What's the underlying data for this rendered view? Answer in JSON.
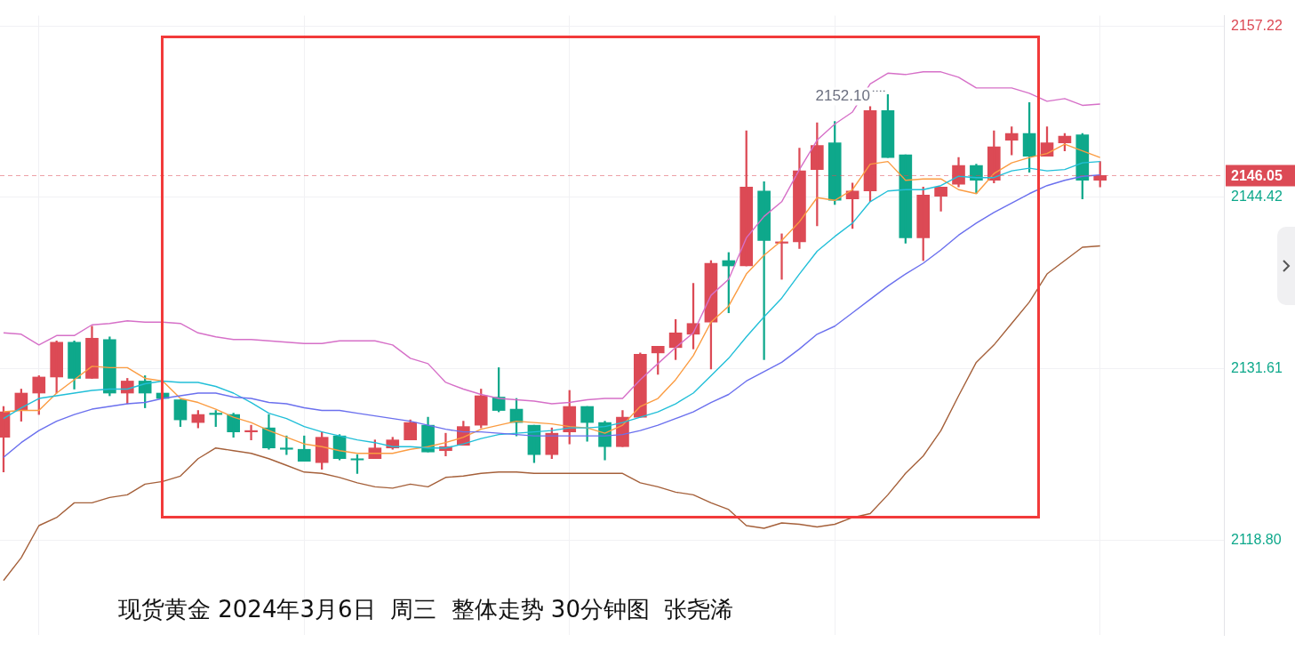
{
  "chart_data": {
    "type": "candlestick",
    "title": "现货黄金 2024年3月6日  周三  整体走势 30分钟图  张尧浠",
    "categories": [
      null,
      null,
      null,
      null,
      null,
      null,
      null,
      null,
      null,
      null,
      null,
      null,
      null,
      null,
      null,
      null,
      null,
      null,
      null,
      null,
      null,
      null,
      null,
      null,
      null,
      null,
      null,
      null,
      null,
      null,
      null,
      null,
      null,
      null,
      null,
      null,
      null,
      null,
      null,
      null,
      null,
      null,
      null,
      null,
      null,
      null,
      null,
      null,
      null,
      null,
      null,
      null,
      null,
      null,
      null,
      null,
      null,
      null,
      null,
      null,
      null,
      null,
      null
    ],
    "ohlc": [
      [
        2126.5,
        2128.8,
        2123.9,
        2128.4
      ],
      [
        2128.5,
        2130.1,
        2127.7,
        2129.8
      ],
      [
        2129.8,
        2131.1,
        2128.2,
        2131.0
      ],
      [
        2131.0,
        2133.7,
        2129.8,
        2133.6
      ],
      [
        2133.6,
        2133.7,
        2130.1,
        2130.9
      ],
      [
        2130.9,
        2134.8,
        2130.9,
        2133.9
      ],
      [
        2133.8,
        2134.0,
        2129.6,
        2129.8
      ],
      [
        2129.8,
        2130.9,
        2129.0,
        2130.7
      ],
      [
        2130.7,
        2131.1,
        2128.7,
        2129.8
      ],
      [
        2129.8,
        2129.8,
        2129.4,
        2129.4
      ],
      [
        2129.3,
        2129.3,
        2127.3,
        2127.8
      ],
      [
        2127.6,
        2128.5,
        2127.2,
        2128.2
      ],
      [
        2128.3,
        2128.5,
        2127.3,
        2128.2
      ],
      [
        2128.2,
        2128.3,
        2126.5,
        2126.9
      ],
      [
        2126.9,
        2127.4,
        2126.3,
        2127.0
      ],
      [
        2127.2,
        2128.2,
        2125.6,
        2125.7
      ],
      [
        2125.7,
        2126.6,
        2125.2,
        2125.6
      ],
      [
        2125.6,
        2126.6,
        2124.7,
        2124.7
      ],
      [
        2124.6,
        2126.9,
        2124.1,
        2126.5
      ],
      [
        2126.6,
        2126.7,
        2124.8,
        2124.9
      ],
      [
        2124.9,
        2125.2,
        2123.8,
        2124.8
      ],
      [
        2124.9,
        2126.3,
        2124.9,
        2125.7
      ],
      [
        2125.7,
        2126.5,
        2125.6,
        2126.3
      ],
      [
        2126.3,
        2127.8,
        2126.3,
        2127.6
      ],
      [
        2127.4,
        2128.0,
        2125.4,
        2125.4
      ],
      [
        2125.5,
        2126.8,
        2125.1,
        2125.8
      ],
      [
        2125.9,
        2127.7,
        2125.9,
        2127.3
      ],
      [
        2127.4,
        2130.1,
        2127.2,
        2129.6
      ],
      [
        2129.5,
        2131.7,
        2128.4,
        2128.5
      ],
      [
        2128.6,
        2129.4,
        2126.6,
        2127.6
      ],
      [
        2127.4,
        2127.4,
        2124.6,
        2125.2
      ],
      [
        2125.2,
        2127.2,
        2124.9,
        2126.8
      ],
      [
        2126.9,
        2130.0,
        2126.0,
        2128.8
      ],
      [
        2128.8,
        2128.8,
        2126.2,
        2127.6
      ],
      [
        2127.6,
        2127.7,
        2124.8,
        2125.8
      ],
      [
        2125.8,
        2128.5,
        2125.8,
        2128.0
      ],
      [
        2128.0,
        2132.8,
        2128.0,
        2132.7
      ],
      [
        2132.8,
        2133.3,
        2131.2,
        2133.3
      ],
      [
        2133.2,
        2135.3,
        2132.3,
        2134.3
      ],
      [
        2134.2,
        2138.0,
        2133.1,
        2135.0
      ],
      [
        2135.1,
        2139.7,
        2131.6,
        2139.5
      ],
      [
        2139.7,
        2140.3,
        2135.8,
        2139.3
      ],
      [
        2139.3,
        2149.4,
        2139.3,
        2145.2
      ],
      [
        2144.9,
        2145.6,
        2132.3,
        2141.2
      ],
      [
        2141.0,
        2141.7,
        2138.3,
        2141.1
      ],
      [
        2141.1,
        2148.1,
        2140.6,
        2146.4
      ],
      [
        2146.5,
        2150.0,
        2142.3,
        2148.3
      ],
      [
        2148.5,
        2150.1,
        2143.9,
        2144.2
      ],
      [
        2144.3,
        2145.5,
        2142.1,
        2144.9
      ],
      [
        2144.9,
        2151.2,
        2144.1,
        2150.9
      ],
      [
        2150.9,
        2152.1,
        2147.4,
        2147.4
      ],
      [
        2147.6,
        2147.6,
        2141.0,
        2141.4
      ],
      [
        2141.4,
        2145.2,
        2139.7,
        2144.6
      ],
      [
        2144.5,
        2145.2,
        2143.4,
        2145.2
      ],
      [
        2145.4,
        2147.4,
        2145.2,
        2146.8
      ],
      [
        2146.8,
        2146.9,
        2144.7,
        2145.7
      ],
      [
        2145.7,
        2149.4,
        2145.5,
        2148.2
      ],
      [
        2148.7,
        2149.7,
        2147.6,
        2149.2
      ],
      [
        2149.2,
        2151.5,
        2146.3,
        2147.5
      ],
      [
        2147.5,
        2149.7,
        2147.5,
        2148.5
      ],
      [
        2148.5,
        2149.2,
        2147.9,
        2149.0
      ],
      [
        2149.1,
        2149.2,
        2144.3,
        2145.7
      ],
      [
        2145.7,
        2147.1,
        2145.2,
        2146.05
      ]
    ],
    "colors": [
      "#dc4a55",
      "#dc4a55",
      "#dc4a55",
      "#dc4a55",
      "#0ea88b",
      "#dc4a55",
      "#0ea88b",
      "#dc4a55",
      "#0ea88b",
      "#0ea88b",
      "#0ea88b",
      "#dc4a55",
      "#0ea88b",
      "#0ea88b",
      "#dc4a55",
      "#0ea88b",
      "#0ea88b",
      "#0ea88b",
      "#dc4a55",
      "#0ea88b",
      "#0ea88b",
      "#dc4a55",
      "#dc4a55",
      "#dc4a55",
      "#0ea88b",
      "#dc4a55",
      "#dc4a55",
      "#dc4a55",
      "#0ea88b",
      "#0ea88b",
      "#0ea88b",
      "#dc4a55",
      "#dc4a55",
      "#0ea88b",
      "#0ea88b",
      "#dc4a55",
      "#dc4a55",
      "#dc4a55",
      "#dc4a55",
      "#dc4a55",
      "#dc4a55",
      "#0ea88b",
      "#dc4a55",
      "#0ea88b",
      "#dc4a55",
      "#dc4a55",
      "#dc4a55",
      "#0ea88b",
      "#dc4a55",
      "#dc4a55",
      "#0ea88b",
      "#0ea88b",
      "#dc4a55",
      "#dc4a55",
      "#dc4a55",
      "#0ea88b",
      "#dc4a55",
      "#dc4a55",
      "#0ea88b",
      "#dc4a55",
      "#dc4a55",
      "#0ea88b",
      "#dc4a55"
    ],
    "series": [
      {
        "type": "line",
        "color": "#d670c8",
        "values": [
          2134.3,
          2134.2,
          2133.4,
          2134.1,
          2134.1,
          2134.9,
          2135.0,
          2135.2,
          2135.1,
          2135.1,
          2135.0,
          2134.3,
          2134.0,
          2133.8,
          2133.8,
          2133.7,
          2133.6,
          2133.5,
          2133.5,
          2133.7,
          2133.7,
          2133.7,
          2133.4,
          2132.4,
          2132.0,
          2130.6,
          2130.1,
          2129.7,
          2129.4,
          2129.3,
          2129.2,
          2129.0,
          2129.1,
          2129.3,
          2129.4,
          2129.4,
          2130.8,
          2132.0,
          2133.2,
          2134.3,
          2137.1,
          2138.3,
          2141.4,
          2143.0,
          2144.1,
          2146.5,
          2148.7,
          2149.9,
          2150.8,
          2152.9,
          2153.7,
          2153.6,
          2153.8,
          2153.8,
          2153.4,
          2152.6,
          2152.6,
          2152.6,
          2152.2,
          2151.6,
          2151.8,
          2151.3,
          2151.4
        ]
      },
      {
        "type": "line",
        "color": "#a5603a",
        "values": [
          2115.8,
          2117.5,
          2119.9,
          2120.5,
          2121.6,
          2121.6,
          2122.0,
          2122.2,
          2123.0,
          2123.2,
          2123.6,
          2124.9,
          2125.7,
          2125.5,
          2125.3,
          2124.9,
          2124.4,
          2123.9,
          2123.8,
          2123.5,
          2123.1,
          2122.8,
          2122.7,
          2123.0,
          2122.8,
          2123.5,
          2123.6,
          2123.8,
          2123.9,
          2123.9,
          2123.8,
          2123.8,
          2123.8,
          2123.8,
          2123.8,
          2123.8,
          2123.1,
          2122.8,
          2122.4,
          2122.2,
          2121.6,
          2121.1,
          2119.9,
          2119.7,
          2120.1,
          2120.0,
          2119.8,
          2120.0,
          2120.5,
          2120.8,
          2122.2,
          2123.8,
          2125.1,
          2127.0,
          2129.6,
          2132.1,
          2133.4,
          2135.0,
          2136.6,
          2138.7,
          2139.7,
          2140.7,
          2140.8
        ]
      },
      {
        "type": "line",
        "color": "#6b70ee",
        "values": [
          2125.0,
          2126.1,
          2127.0,
          2127.7,
          2128.2,
          2128.6,
          2128.8,
          2129.0,
          2129.1,
          2129.4,
          2129.6,
          2129.8,
          2129.8,
          2129.5,
          2129.4,
          2129.1,
          2129.0,
          2128.7,
          2128.5,
          2128.5,
          2128.3,
          2128.1,
          2127.9,
          2127.7,
          2127.4,
          2127.1,
          2126.9,
          2126.9,
          2126.8,
          2126.7,
          2126.6,
          2126.6,
          2126.6,
          2126.6,
          2126.6,
          2126.7,
          2127.0,
          2127.4,
          2127.9,
          2128.4,
          2129.1,
          2129.7,
          2130.7,
          2131.4,
          2132.1,
          2133.1,
          2134.2,
          2134.8,
          2135.8,
          2136.8,
          2137.8,
          2138.7,
          2139.5,
          2140.5,
          2141.6,
          2142.5,
          2143.3,
          2144.0,
          2144.7,
          2145.3,
          2145.7,
          2146.0,
          2146.1
        ]
      },
      {
        "type": "line",
        "color": "#22bfd8",
        "values": [
          2127.9,
          2128.7,
          2129.4,
          2129.6,
          2129.8,
          2130.0,
          2130.1,
          2130.1,
          2130.5,
          2130.7,
          2130.6,
          2130.6,
          2130.3,
          2129.8,
          2129.1,
          2128.3,
          2127.9,
          2127.3,
          2126.9,
          2126.6,
          2126.3,
          2126.1,
          2125.8,
          2125.8,
          2125.7,
          2125.7,
          2126.0,
          2126.4,
          2126.7,
          2126.8,
          2126.9,
          2127.0,
          2127.2,
          2127.2,
          2127.3,
          2127.6,
          2128.0,
          2128.4,
          2129.0,
          2129.8,
          2131.1,
          2132.4,
          2134.0,
          2135.5,
          2136.9,
          2138.7,
          2140.4,
          2141.5,
          2142.5,
          2144.1,
          2144.9,
          2145.0,
          2145.0,
          2145.3,
          2146.0,
          2145.9,
          2145.9,
          2146.4,
          2146.6,
          2146.4,
          2146.5,
          2147.0,
          2147.1
        ]
      },
      {
        "type": "line",
        "color": "#fb9c42",
        "values": [
          2128.4,
          2128.5,
          2128.5,
          2129.8,
          2130.8,
          2131.8,
          2131.7,
          2131.7,
          2130.9,
          2130.7,
          2129.4,
          2129.1,
          2128.6,
          2128.0,
          2127.6,
          2127.0,
          2126.5,
          2126.0,
          2125.8,
          2125.5,
          2125.3,
          2125.3,
          2125.3,
          2125.6,
          2125.8,
          2126.1,
          2126.5,
          2127.1,
          2127.4,
          2127.7,
          2127.6,
          2127.5,
          2127.3,
          2127.2,
          2126.8,
          2127.4,
          2128.8,
          2129.4,
          2130.8,
          2132.6,
          2135.1,
          2136.3,
          2138.7,
          2140.1,
          2141.2,
          2142.6,
          2144.4,
          2144.2,
          2145.0,
          2146.9,
          2147.1,
          2145.7,
          2145.8,
          2145.8,
          2145.0,
          2144.7,
          2146.2,
          2147.0,
          2147.4,
          2147.7,
          2148.4,
          2147.9,
          2147.4
        ]
      }
    ],
    "ylim": [
      2111.7,
      2158.0
    ],
    "yticks": [
      {
        "value": 2118.8,
        "label": "2118.80"
      },
      {
        "value": 2131.61,
        "label": "2131.61"
      },
      {
        "value": 2144.42,
        "label": "2144.42"
      },
      {
        "value": 2157.22,
        "label": "2157.22"
      }
    ],
    "grid": true,
    "tick_labels": "y",
    "ref_lines": [
      {
        "axis": "y",
        "value": 2146.05,
        "label": "2146.05",
        "color": "#dc4a55",
        "line_style": "dashed"
      }
    ],
    "annotations": [
      "2152.10"
    ]
  }
}
